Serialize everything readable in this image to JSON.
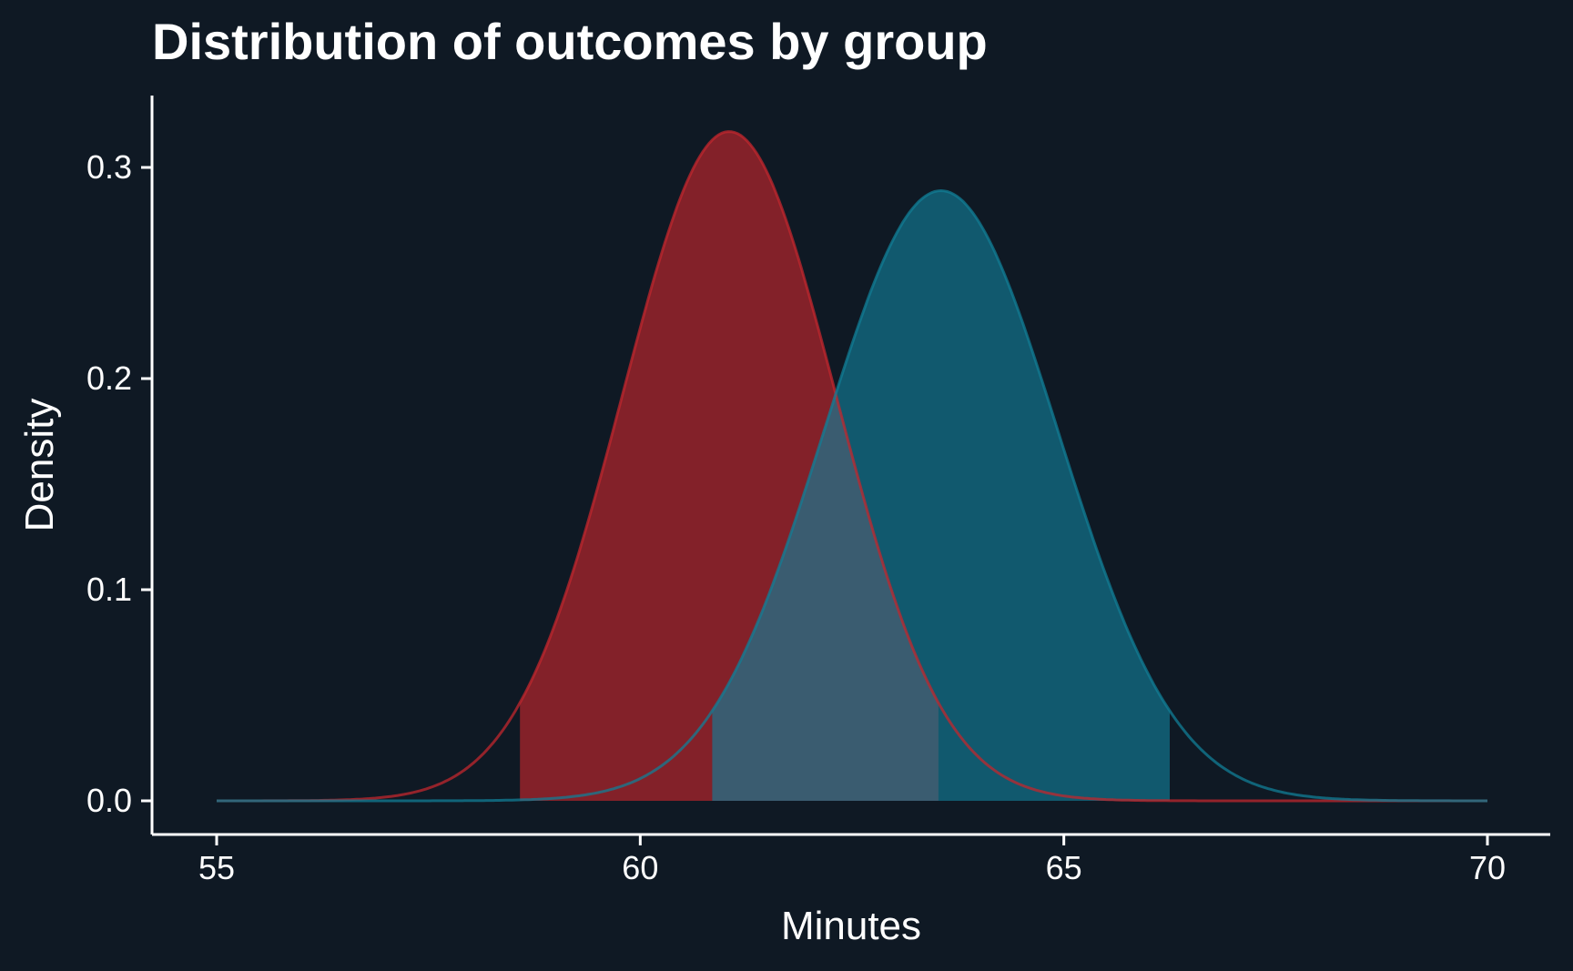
{
  "chart_data": {
    "type": "area",
    "title": "Distribution of outcomes by group",
    "xlabel": "Minutes",
    "ylabel": "Density",
    "xlim": [
      55,
      70
    ],
    "ylim": [
      0,
      0.33
    ],
    "x_ticks": [
      55,
      60,
      65,
      70
    ],
    "x_tick_labels": [
      "55",
      "60",
      "65",
      "70"
    ],
    "y_ticks": [
      0.0,
      0.1,
      0.2,
      0.3
    ],
    "y_tick_labels": [
      "0.0",
      "0.1",
      "0.2",
      "0.3"
    ],
    "grid": false,
    "legend": "none",
    "series": [
      {
        "distribution": "normal",
        "mean": 61.05,
        "sd": 1.26,
        "peak_density": 0.317,
        "shaded_interval": [
          58.58,
          63.52
        ],
        "color": "#c1272d"
      },
      {
        "distribution": "normal",
        "mean": 63.55,
        "sd": 1.38,
        "peak_density": 0.289,
        "shaded_interval": [
          60.85,
          66.25
        ],
        "color": "#127d96"
      }
    ]
  }
}
